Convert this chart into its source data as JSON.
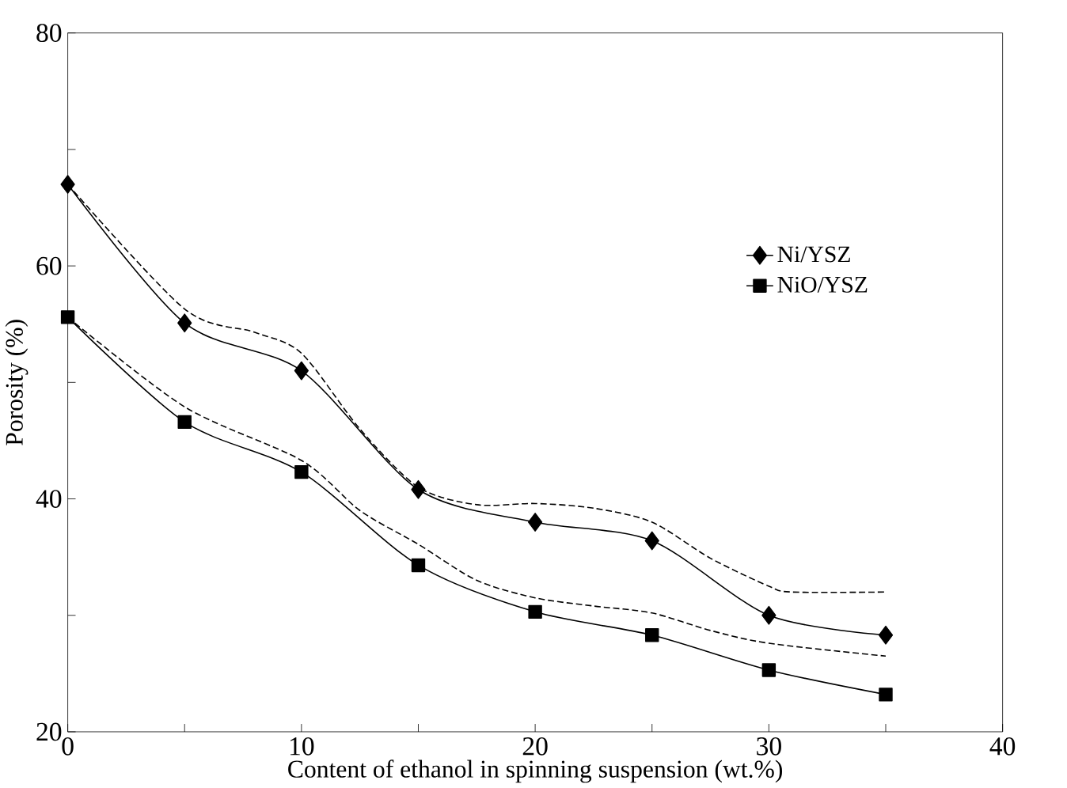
{
  "chart_data": {
    "type": "line",
    "xlabel": "Content of ethanol in spinning suspension (wt.%)",
    "ylabel": "Porosity (%)",
    "xlim": [
      0,
      40
    ],
    "ylim": [
      20,
      80
    ],
    "xticks": [
      0,
      {
        "value": 5,
        "label": null
      },
      10,
      {
        "value": 15,
        "label": null
      },
      20,
      {
        "value": 25,
        "label": null
      },
      30,
      {
        "value": 35,
        "label": null
      },
      40
    ],
    "yticks": [
      20,
      {
        "value": 30,
        "label": null
      },
      40,
      {
        "value": 50,
        "label": null
      },
      60,
      {
        "value": 70,
        "label": null
      },
      80
    ],
    "grid": false,
    "legend": "right",
    "series": [
      {
        "name": "Ni/YSZ",
        "color": "#000000",
        "marker": "diamond",
        "line_style": "solid",
        "x": [
          0,
          5,
          10,
          15,
          20,
          25,
          30,
          35
        ],
        "values": [
          67.0,
          55.1,
          51.0,
          40.8,
          38.0,
          36.4,
          30.0,
          28.3
        ]
      },
      {
        "name": "NiO/YSZ",
        "color": "#000000",
        "marker": "square",
        "line_style": "solid",
        "x": [
          0,
          5,
          10,
          15,
          20,
          25,
          30,
          35
        ],
        "values": [
          55.6,
          46.6,
          42.3,
          34.3,
          30.3,
          28.3,
          25.3,
          23.2
        ]
      },
      {
        "color": "#000000",
        "marker": "none",
        "line_style": "dashed",
        "x": [
          0,
          5,
          8,
          10,
          12.5,
          15,
          17.5,
          20,
          22.5,
          25,
          27.5,
          30,
          31,
          35
        ],
        "values": [
          67.0,
          56.3,
          54.3,
          52.5,
          46.0,
          41.0,
          39.5,
          39.6,
          39.2,
          38.0,
          34.9,
          32.5,
          32.0,
          32.0
        ]
      },
      {
        "color": "#000000",
        "marker": "none",
        "line_style": "dashed",
        "x": [
          0,
          5,
          10,
          12.5,
          15,
          17.5,
          20,
          22.5,
          25,
          27.5,
          30,
          35
        ],
        "values": [
          55.6,
          47.9,
          43.3,
          39.0,
          36.1,
          33.0,
          31.5,
          30.8,
          30.2,
          28.7,
          27.6,
          26.5
        ]
      }
    ]
  }
}
